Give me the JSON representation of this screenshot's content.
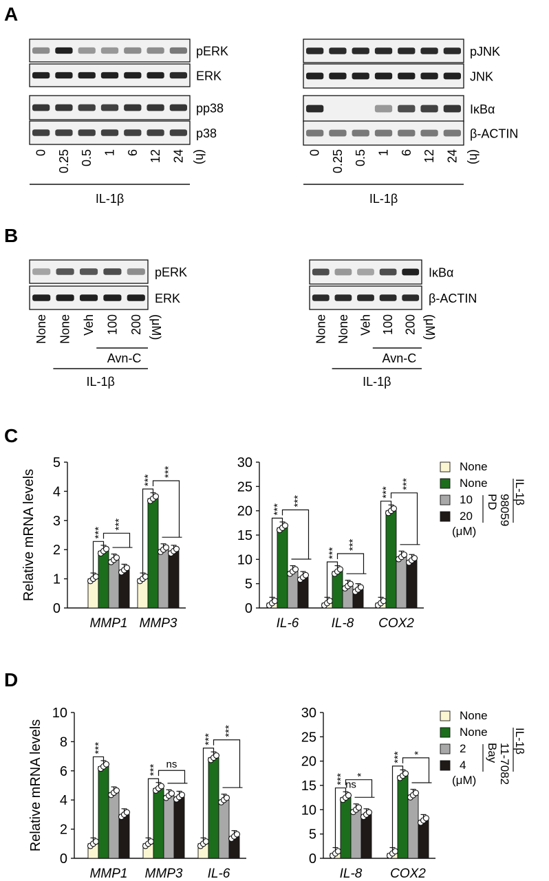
{
  "panels": {
    "A": "A",
    "B": "B",
    "C": "C",
    "D": "D"
  },
  "panel_a": {
    "left": {
      "rows": [
        "pERK",
        "ERK",
        "pp38",
        "p38"
      ],
      "timepoints": [
        "0",
        "0.25",
        "0.5",
        "1",
        "6",
        "12",
        "24"
      ],
      "unit": "(h)",
      "treatment": "IL-1β"
    },
    "right": {
      "rows": [
        "pJNK",
        "JNK",
        "IκBα",
        "β-ACTIN"
      ],
      "timepoints": [
        "0",
        "0.25",
        "0.5",
        "1",
        "6",
        "12",
        "24"
      ],
      "unit": "(h)",
      "treatment": "IL-1β"
    }
  },
  "panel_b": {
    "left": {
      "rows": [
        "pERK",
        "ERK"
      ],
      "lanes": [
        "None",
        "None",
        "Veh",
        "100",
        "200"
      ],
      "unit": "(μM)",
      "drug": "Avn-C",
      "treatment": "IL-1β"
    },
    "right": {
      "rows": [
        "IκBα",
        "β-ACTIN"
      ],
      "lanes": [
        "None",
        "None",
        "Veh",
        "100",
        "200"
      ],
      "unit": "(μM)",
      "drug": "Avn-C",
      "treatment": "IL-1β"
    }
  },
  "panel_c_legend": {
    "items": [
      "None",
      "None",
      "10",
      "20"
    ],
    "unit": "(μM)",
    "drug": "PD 98059",
    "treatment": "IL-1β"
  },
  "panel_d_legend": {
    "items": [
      "None",
      "None",
      "2",
      "4"
    ],
    "unit": "(μM)",
    "drug": "Bay 11-7082",
    "treatment": "IL-1β"
  },
  "colors": {
    "none_ctrl": "#fbf6d2",
    "il1b": "#1c6e1c",
    "low": "#a8a8a8",
    "high": "#1f1a17"
  },
  "chart_data": [
    {
      "type": "bar",
      "panel": "C-left",
      "ylabel": "Relative mRNA levels",
      "ylim": [
        0,
        5
      ],
      "yticks": [
        "0",
        "1",
        "2",
        "3",
        "4",
        "5"
      ],
      "categories": [
        "MMP1",
        "MMP3"
      ],
      "series": [
        {
          "values": [
            1.0,
            1.0
          ]
        },
        {
          "values": [
            1.95,
            3.75
          ]
        },
        {
          "values": [
            1.65,
            2.0
          ]
        },
        {
          "values": [
            1.3,
            1.95
          ]
        }
      ],
      "significance": [
        [
          "***",
          "***"
        ],
        [
          "***",
          "***"
        ]
      ]
    },
    {
      "type": "bar",
      "panel": "C-right",
      "ylim": [
        0,
        30
      ],
      "yticks": [
        "0",
        "5",
        "10",
        "15",
        "20",
        "25",
        "30"
      ],
      "categories": [
        "IL-6",
        "IL-8",
        "COX2"
      ],
      "series": [
        {
          "values": [
            1.0,
            1.0,
            1.0
          ]
        },
        {
          "values": [
            16.5,
            7.5,
            20.0
          ]
        },
        {
          "values": [
            7.5,
            4.5,
            10.5
          ]
        },
        {
          "values": [
            6.3,
            3.8,
            9.8
          ]
        }
      ],
      "significance": [
        [
          "***",
          "***"
        ],
        [
          "***",
          "***"
        ],
        [
          "***",
          "***"
        ]
      ]
    },
    {
      "type": "bar",
      "panel": "D-left",
      "ylabel": "Relative mRNA levels",
      "ylim": [
        0,
        10
      ],
      "yticks": [
        "0",
        "2",
        "4",
        "6",
        "8",
        "10"
      ],
      "categories": [
        "MMP1",
        "MMP3",
        "IL-6"
      ],
      "series": [
        {
          "values": [
            1.0,
            1.0,
            1.0
          ]
        },
        {
          "values": [
            6.3,
            4.8,
            6.9
          ]
        },
        {
          "values": [
            4.5,
            4.3,
            4.0
          ]
        },
        {
          "values": [
            3.0,
            4.2,
            1.5
          ]
        }
      ],
      "significance": [
        [
          "***",
          ""
        ],
        [
          "***",
          "ns"
        ],
        [
          "***",
          "***"
        ]
      ]
    },
    {
      "type": "bar",
      "panel": "D-right",
      "ylim": [
        0,
        30
      ],
      "yticks": [
        "0",
        "5",
        "10",
        "15",
        "20",
        "25",
        "30"
      ],
      "categories": [
        "IL-8",
        "COX2"
      ],
      "series": [
        {
          "values": [
            1.0,
            1.0
          ]
        },
        {
          "values": [
            12.5,
            17.0
          ]
        },
        {
          "values": [
            10.0,
            13.0
          ]
        },
        {
          "values": [
            9.0,
            7.8
          ]
        }
      ],
      "significance": [
        [
          "***",
          "ns",
          "*"
        ],
        [
          "***",
          "*"
        ]
      ]
    }
  ]
}
